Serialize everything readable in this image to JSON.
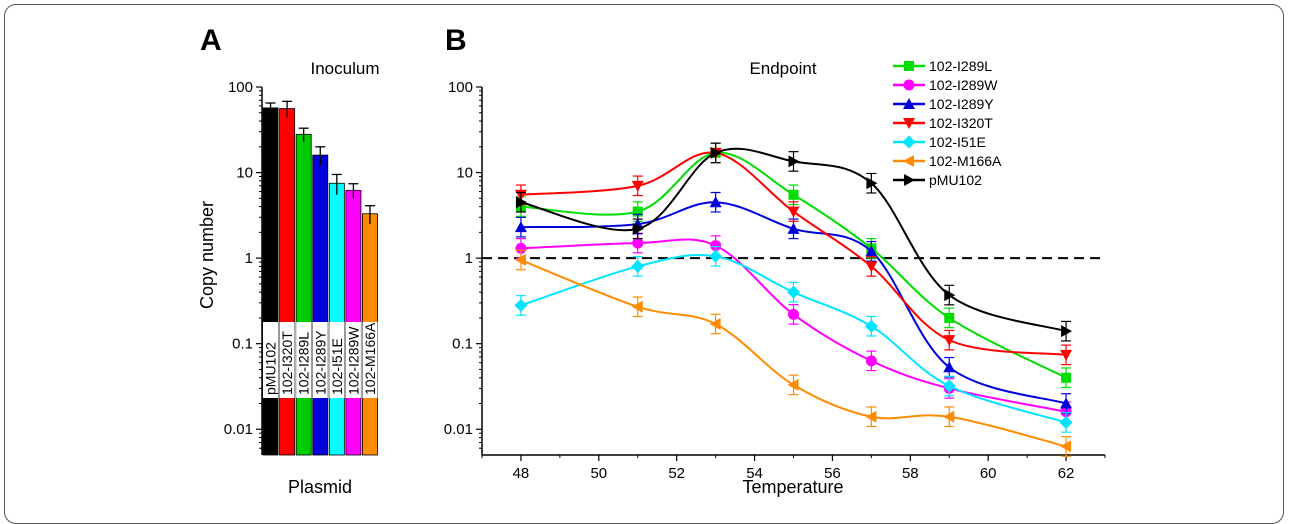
{
  "panels": {
    "a": {
      "letter": "A"
    },
    "b": {
      "letter": "B"
    }
  },
  "chart_data": [
    {
      "type": "bar",
      "title": "Inoculum",
      "xlabel": "Plasmid",
      "ylabel": "Copy number",
      "yscale": "log",
      "ylim": [
        0.005,
        100
      ],
      "yticks": [
        "0.01",
        "0.1",
        "1",
        "10",
        "100"
      ],
      "categories": [
        "pMU102",
        "102-I320T",
        "102-I289L",
        "102-I289Y",
        "102-I51E",
        "102-I289W",
        "102-M166A"
      ],
      "values": [
        57,
        56,
        28,
        16,
        7.5,
        6.2,
        3.3
      ],
      "errors": [
        8,
        12,
        5,
        4,
        2,
        1.2,
        0.8
      ],
      "colors": [
        "#000000",
        "#ff0000",
        "#00cc00",
        "#0000dd",
        "#00ffff",
        "#ff00ff",
        "#ff8c00"
      ]
    },
    {
      "type": "line",
      "title": "Endpoint",
      "xlabel": "Temperature",
      "ylabel": "",
      "yscale": "log",
      "xlim": [
        47,
        63
      ],
      "ylim": [
        0.005,
        100
      ],
      "xticks": [
        48,
        50,
        52,
        54,
        56,
        58,
        60,
        62
      ],
      "yticks": [
        "0.01",
        "0.1",
        "1",
        "10",
        "100"
      ],
      "reference_line": 1,
      "x": [
        48,
        51,
        53,
        55,
        57,
        59,
        62
      ],
      "series": [
        {
          "name": "102-I289L",
          "marker": "square",
          "color": "#00dd00",
          "values": [
            4.0,
            3.5,
            17.0,
            5.5,
            1.3,
            0.2,
            0.04
          ]
        },
        {
          "name": "102-I289W",
          "marker": "circle",
          "color": "#ff00ff",
          "values": [
            1.3,
            1.5,
            1.4,
            0.22,
            0.063,
            0.03,
            0.016
          ]
        },
        {
          "name": "102-I289Y",
          "marker": "triangle-up",
          "color": "#0000dd",
          "values": [
            2.3,
            2.5,
            4.5,
            2.2,
            1.2,
            0.053,
            0.02
          ]
        },
        {
          "name": "102-I320T",
          "marker": "triangle-down",
          "color": "#ff0000",
          "values": [
            5.5,
            7.0,
            17.0,
            3.5,
            0.8,
            0.11,
            0.074
          ]
        },
        {
          "name": "102-I51E",
          "marker": "diamond",
          "color": "#00e5ff",
          "values": [
            0.28,
            0.8,
            1.05,
            0.4,
            0.16,
            0.032,
            0.012
          ]
        },
        {
          "name": "102-M166A",
          "marker": "triangle-left",
          "color": "#ff8c00",
          "values": [
            0.95,
            0.27,
            0.17,
            0.033,
            0.014,
            0.014,
            0.0063
          ]
        },
        {
          "name": "pMU102",
          "marker": "triangle-right",
          "color": "#000000",
          "values": [
            4.5,
            2.2,
            17.0,
            13.5,
            7.5,
            0.37,
            0.14
          ]
        }
      ]
    }
  ]
}
